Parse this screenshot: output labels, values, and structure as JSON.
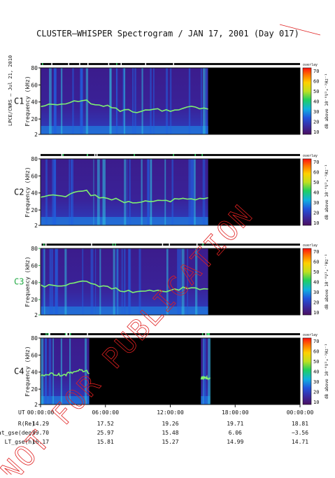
{
  "title": "CLUSTER–WHISPER Spectrogram / JAN 17, 2001 (Day 017)",
  "side_credit": "LPCE/CNRS – Jul 21, 2010",
  "watermark": "NOT FOR PUBLICATION",
  "colors": {
    "background": "#ffffff",
    "plot_bg": "#3a1f8a",
    "no_data": "#000000",
    "line": "#111111",
    "watermark": "#e02020",
    "c3_label": "#22aa44",
    "c3_ticks": "#22aa44"
  },
  "chart_data": {
    "type": "heatmap",
    "panels": [
      {
        "id": "C1",
        "label": "C1",
        "ylabel": "Frequency (kHz)",
        "yticks": [
          "80",
          "60",
          "40",
          "20",
          "2"
        ],
        "ylim": [
          2,
          80
        ],
        "data_coverage": [
          [
            "00:00:00",
            "15:30:00"
          ]
        ],
        "label_color": "#111111"
      },
      {
        "id": "C2",
        "label": "C2",
        "ylabel": "Frequency (kHz)",
        "yticks": [
          "80",
          "60",
          "40",
          "20",
          "2"
        ],
        "ylim": [
          2,
          80
        ],
        "data_coverage": [
          [
            "00:00:00",
            "15:30:00"
          ]
        ],
        "label_color": "#111111"
      },
      {
        "id": "C3",
        "label": "C3",
        "ylabel": "Frequency (kHz)",
        "yticks": [
          "80",
          "60",
          "40",
          "20",
          "2"
        ],
        "ylim": [
          2,
          80
        ],
        "data_coverage": [
          [
            "00:00:00",
            "15:30:00"
          ]
        ],
        "label_color": "#22aa44"
      },
      {
        "id": "C4",
        "label": "C4",
        "ylabel": "Frequency (kHz)",
        "yticks": [
          "80",
          "60",
          "40",
          "20",
          "2"
        ],
        "ylim": [
          2,
          80
        ],
        "data_coverage": [
          [
            "00:00:00",
            "04:30:00"
          ],
          [
            "14:50:00",
            "15:40:00"
          ]
        ],
        "label_color": "#111111"
      }
    ],
    "colorbar": {
      "label": "dB above 10⁻⁸V²ₘ⁻²Hz⁻¹",
      "ticks": [
        "70",
        "60",
        "50",
        "40",
        "30",
        "20",
        "10"
      ],
      "range": [
        10,
        70
      ],
      "header": "overlay",
      "colors": [
        "#4a0f60",
        "#3a2aa0",
        "#2255dd",
        "#10b0e0",
        "#20d060",
        "#c0e020",
        "#ffd000",
        "#ff7000",
        "#ff1010"
      ]
    },
    "x_axis": {
      "label": "UT",
      "ticks": [
        "00:00:00",
        "06:00:00",
        "12:00:00",
        "18:00:00",
        "00:00:00"
      ],
      "xlim": [
        "00:00:00",
        "24:00:00"
      ]
    },
    "ephemeris": [
      {
        "label": "R(Re)",
        "values": [
          "14.29",
          "17.52",
          "19.26",
          "19.71",
          "18.81"
        ]
      },
      {
        "label": "Lat_gse(deg)",
        "values": [
          "39.70",
          "25.97",
          "15.48",
          "6.06",
          "−3.56"
        ]
      },
      {
        "label": "LT_gse(h)",
        "values": [
          "16.17",
          "15.81",
          "15.27",
          "14.99",
          "14.71"
        ]
      }
    ],
    "plasma_line_khz": [
      36,
      38,
      37,
      40,
      42,
      38,
      35,
      33,
      30,
      29,
      30,
      31,
      30,
      32,
      34,
      33,
      33
    ]
  }
}
